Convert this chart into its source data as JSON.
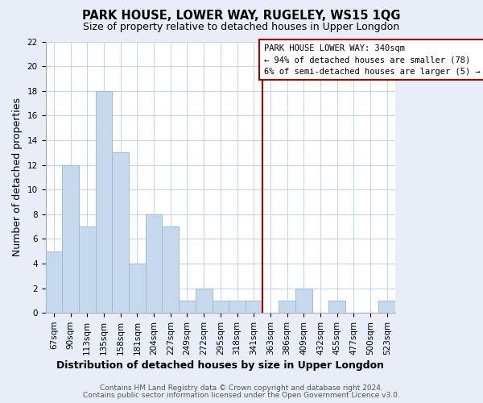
{
  "title": "PARK HOUSE, LOWER WAY, RUGELEY, WS15 1QG",
  "subtitle": "Size of property relative to detached houses in Upper Longdon",
  "xlabel": "Distribution of detached houses by size in Upper Longdon",
  "ylabel": "Number of detached properties",
  "bin_labels": [
    "67sqm",
    "90sqm",
    "113sqm",
    "135sqm",
    "158sqm",
    "181sqm",
    "204sqm",
    "227sqm",
    "249sqm",
    "272sqm",
    "295sqm",
    "318sqm",
    "341sqm",
    "363sqm",
    "386sqm",
    "409sqm",
    "432sqm",
    "455sqm",
    "477sqm",
    "500sqm",
    "523sqm"
  ],
  "bar_heights": [
    5,
    12,
    7,
    18,
    13,
    4,
    8,
    7,
    1,
    2,
    1,
    1,
    1,
    0,
    1,
    2,
    0,
    1,
    0,
    0,
    1
  ],
  "bar_color": "#c6d9ec",
  "bar_edge_color": "#9dbdd8",
  "vline_x_index": 12,
  "vline_color": "#aa0000",
  "annotation_line1": "PARK HOUSE LOWER WAY: 340sqm",
  "annotation_line2": "← 94% of detached houses are smaller (78)",
  "annotation_line3": "6% of semi-detached houses are larger (5) →",
  "ylim": [
    0,
    22
  ],
  "yticks": [
    0,
    2,
    4,
    6,
    8,
    10,
    12,
    14,
    16,
    18,
    20,
    22
  ],
  "footer1": "Contains HM Land Registry data © Crown copyright and database right 2024.",
  "footer2": "Contains public sector information licensed under the Open Government Licence v3.0.",
  "fig_bg_color": "#e8edf8",
  "plot_bg_color": "#ffffff",
  "grid_color": "#c8d4e8",
  "title_fontsize": 10.5,
  "subtitle_fontsize": 9,
  "axis_label_fontsize": 9,
  "tick_fontsize": 7.5,
  "footer_fontsize": 6.5,
  "ann_fontsize": 7.5
}
